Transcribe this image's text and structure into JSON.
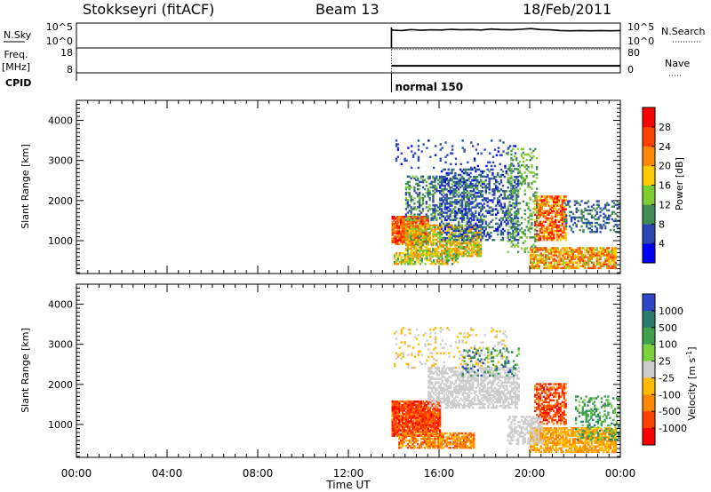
{
  "header": {
    "site": "Stokkseyri (fitACF)",
    "beam": "Beam 13",
    "date": "18/Feb/2011"
  },
  "chart_data": [
    {
      "type": "line",
      "panel": "noise",
      "left_label": "N.Sky",
      "right_label": "N.Search",
      "yticks_left": [
        "10^5",
        "10^0"
      ],
      "yticks_right": [
        "10^5",
        "10^0"
      ],
      "data_start_hour": 13.9,
      "series": [
        {
          "values": [
            0.72,
            0.7,
            0.74,
            0.71,
            0.73,
            0.72,
            0.75,
            0.73,
            0.74,
            0.72,
            0.76,
            0.74,
            0.73,
            0.75,
            0.78,
            0.74,
            0.73,
            0.7,
            0.69,
            0.7,
            0.69,
            0.7,
            0.69,
            0.7
          ]
        }
      ]
    },
    {
      "type": "line",
      "panel": "freq",
      "left_label_top": "Freq.",
      "left_label_bottom": "[MHz]",
      "right_label": "Nave",
      "yticks_left": [
        "18",
        "8"
      ],
      "yticks_right": [
        "80",
        "0"
      ],
      "data_start_hour": 13.9,
      "freq_value": 10.8,
      "nave_value": 75
    },
    {
      "type": "table",
      "panel": "cpid",
      "label": "CPID",
      "segments": [
        {
          "start_hour": 13.9,
          "text": "normal 150"
        }
      ]
    },
    {
      "type": "heatmap",
      "panel": "power",
      "ylabel": "Slant Range [km]",
      "ylim": [
        180,
        4500
      ],
      "yticks": [
        1000,
        2000,
        3000,
        4000
      ],
      "xlim": [
        0,
        24
      ],
      "colorbar_label": "Power [dB]",
      "colorbar_ticks": [
        "4",
        "8",
        "12",
        "16",
        "20",
        "24",
        "28"
      ],
      "colors": [
        "#0000ff",
        "#2c46b4",
        "#3f8c56",
        "#7fcc33",
        "#ffcc00",
        "#ff8800",
        "#ff4000",
        "#ff0000"
      ],
      "regions": [
        {
          "x0": 13.9,
          "x1": 15.5,
          "y0": 900,
          "y1": 1600,
          "vmin": 20,
          "vmax": 30,
          "density": 0.9
        },
        {
          "x0": 14.5,
          "x1": 17.8,
          "y0": 600,
          "y1": 1400,
          "vmin": 10,
          "vmax": 24,
          "density": 0.7
        },
        {
          "x0": 14.0,
          "x1": 16.8,
          "y0": 400,
          "y1": 700,
          "vmin": 10,
          "vmax": 22,
          "density": 0.6
        },
        {
          "x0": 14.5,
          "x1": 18.0,
          "y0": 1500,
          "y1": 2600,
          "vmin": 4,
          "vmax": 14,
          "density": 0.35
        },
        {
          "x0": 16.0,
          "x1": 19.5,
          "y0": 1000,
          "y1": 2800,
          "vmin": 3,
          "vmax": 10,
          "density": 0.35
        },
        {
          "x0": 14.0,
          "x1": 19.5,
          "y0": 2800,
          "y1": 3500,
          "vmin": 3,
          "vmax": 8,
          "density": 0.08
        },
        {
          "x0": 20.0,
          "x1": 23.8,
          "y0": 300,
          "y1": 800,
          "vmin": 14,
          "vmax": 28,
          "density": 0.7
        },
        {
          "x0": 20.2,
          "x1": 21.6,
          "y0": 1000,
          "y1": 2100,
          "vmin": 16,
          "vmax": 30,
          "density": 0.7
        },
        {
          "x0": 21.5,
          "x1": 24.0,
          "y0": 1200,
          "y1": 2000,
          "vmin": 4,
          "vmax": 12,
          "density": 0.3
        },
        {
          "x0": 19.0,
          "x1": 20.3,
          "y0": 700,
          "y1": 3300,
          "vmin": 8,
          "vmax": 16,
          "density": 0.25
        }
      ]
    },
    {
      "type": "heatmap",
      "panel": "velocity",
      "ylabel": "Slant Range [km]",
      "xlabel": "Time UT",
      "ylim": [
        180,
        4500
      ],
      "yticks": [
        1000,
        2000,
        3000,
        4000
      ],
      "xlim": [
        0,
        24
      ],
      "xticks": [
        "00:00",
        "04:00",
        "08:00",
        "12:00",
        "16:00",
        "20:00",
        "00:00"
      ],
      "colorbar_label": "Velocity [m s",
      "colorbar_label_sup": "-1",
      "colorbar_label_close": "]",
      "colorbar_ticks": [
        "1000",
        "500",
        "100",
        "25",
        "-25",
        "-100",
        "-500",
        "-1000"
      ],
      "colors": [
        "#2c46c8",
        "#2b7a6e",
        "#3fa050",
        "#7ad23c",
        "#cccccc",
        "#ffbb00",
        "#ff8800",
        "#ff4000",
        "#ff0000"
      ],
      "regions": [
        {
          "x0": 13.9,
          "x1": 16.0,
          "y0": 700,
          "y1": 1600,
          "vmin": 6,
          "vmax": 8,
          "density": 0.9
        },
        {
          "x0": 14.2,
          "x1": 17.5,
          "y0": 400,
          "y1": 800,
          "vmin": 5,
          "vmax": 7,
          "density": 0.7
        },
        {
          "x0": 15.5,
          "x1": 19.5,
          "y0": 1400,
          "y1": 2400,
          "vmin": 4,
          "vmax": 4,
          "density": 0.6
        },
        {
          "x0": 14.0,
          "x1": 19.0,
          "y0": 2400,
          "y1": 3400,
          "vmin": 4,
          "vmax": 5,
          "density": 0.12
        },
        {
          "x0": 17.0,
          "x1": 19.5,
          "y0": 2200,
          "y1": 2900,
          "vmin": 0,
          "vmax": 3,
          "density": 0.2
        },
        {
          "x0": 20.0,
          "x1": 23.8,
          "y0": 300,
          "y1": 900,
          "vmin": 5,
          "vmax": 6,
          "density": 0.75
        },
        {
          "x0": 20.2,
          "x1": 21.6,
          "y0": 1000,
          "y1": 2000,
          "vmin": 6,
          "vmax": 8,
          "density": 0.6
        },
        {
          "x0": 19.0,
          "x1": 20.5,
          "y0": 500,
          "y1": 1200,
          "vmin": 4,
          "vmax": 4,
          "density": 0.5
        },
        {
          "x0": 22.0,
          "x1": 24.0,
          "y0": 600,
          "y1": 1700,
          "vmin": 1,
          "vmax": 3,
          "density": 0.3
        }
      ]
    }
  ]
}
